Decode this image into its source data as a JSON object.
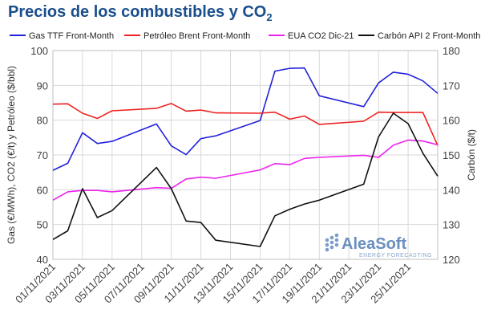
{
  "chart_data": {
    "type": "line",
    "title": "Precios de los combustibles y CO",
    "title_sub": "2",
    "ylabel_left": "Gas (€/MWh), CO2 (€/t)  y Petróleo ($/bbl)",
    "ylabel_right": "Carbón ($/t)",
    "ylim_left": [
      40,
      100
    ],
    "ylim_right": [
      120,
      180
    ],
    "yticks_left": [
      "40",
      "50",
      "60",
      "70",
      "80",
      "90",
      "100"
    ],
    "yticks_right": [
      "120",
      "130",
      "140",
      "150",
      "160",
      "170",
      "180"
    ],
    "x_range": [
      1,
      27
    ],
    "xtick_labels": [
      "01/11/2021",
      "03/11/2021",
      "05/11/2021",
      "07/11/2021",
      "09/11/2021",
      "11/11/2021",
      "13/11/2021",
      "15/11/2021",
      "17/11/2021",
      "19/11/2021",
      "21/11/2021",
      "23/11/2021",
      "25/11/2021"
    ],
    "grid": true,
    "legend_position": "top",
    "series": [
      {
        "name": "Gas TTF Front-Month",
        "color": "#2222dd",
        "axis": "left",
        "x": [
          1,
          2,
          3,
          4,
          5,
          8,
          9,
          10,
          11,
          12,
          15,
          16,
          17,
          18,
          19,
          22,
          23,
          24,
          25,
          26,
          27
        ],
        "values": [
          65.6,
          67.6,
          76.4,
          73.3,
          73.9,
          78.9,
          72.6,
          70.1,
          74.7,
          75.5,
          79.9,
          94.1,
          94.9,
          95.0,
          87.0,
          83.9,
          90.7,
          93.8,
          93.2,
          91.3,
          87.7
        ]
      },
      {
        "name": "Petróleo Brent Front-Month",
        "color": "#ee2222",
        "axis": "left",
        "x": [
          1,
          2,
          3,
          4,
          5,
          8,
          9,
          10,
          11,
          12,
          15,
          16,
          17,
          18,
          19,
          22,
          23,
          24,
          25,
          26,
          27
        ],
        "values": [
          84.6,
          84.7,
          82.0,
          80.5,
          82.7,
          83.4,
          84.8,
          82.6,
          82.9,
          82.1,
          82.0,
          82.3,
          80.3,
          81.2,
          78.8,
          79.7,
          82.3,
          82.2,
          82.2,
          82.2,
          72.7
        ]
      },
      {
        "name": "EUA CO2 Dic-21",
        "color": "#ee22ee",
        "axis": "left",
        "x": [
          1,
          2,
          3,
          4,
          5,
          8,
          9,
          10,
          11,
          12,
          15,
          16,
          17,
          18,
          19,
          22,
          23,
          24,
          25,
          26,
          27
        ],
        "values": [
          57.0,
          59.4,
          59.8,
          59.8,
          59.4,
          60.6,
          60.4,
          63.1,
          63.6,
          63.3,
          65.7,
          67.5,
          67.2,
          69.0,
          69.3,
          69.9,
          69.3,
          72.8,
          74.3,
          74.0,
          72.9
        ]
      },
      {
        "name": "Carbón API 2 Front-Month",
        "color": "#111111",
        "axis": "right",
        "x": [
          1,
          2,
          3,
          4,
          5,
          8,
          9,
          10,
          11,
          12,
          15,
          16,
          17,
          18,
          19,
          22,
          23,
          24,
          25,
          26,
          27
        ],
        "values": [
          125.7,
          128.2,
          140.3,
          132.0,
          134.0,
          146.4,
          140.3,
          131.0,
          130.6,
          125.5,
          123.7,
          132.5,
          134.4,
          135.9,
          137.0,
          141.6,
          155.2,
          162.0,
          159.0,
          150.5,
          143.9
        ]
      }
    ]
  },
  "logo": {
    "name": "AleaSoft",
    "tagline": "ENERGY FORECASTING"
  }
}
